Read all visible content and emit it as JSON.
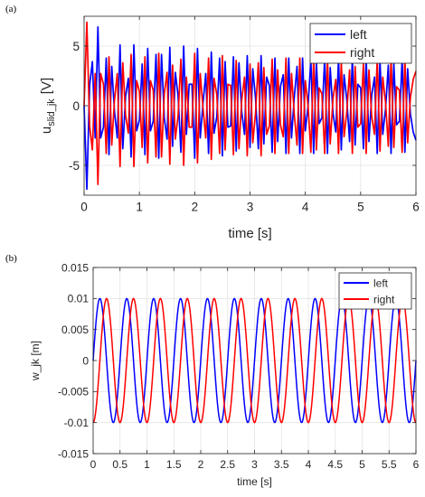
{
  "panels": [
    {
      "tag": "(a)"
    },
    {
      "tag": "(b)"
    }
  ],
  "chart_data": [
    {
      "type": "line",
      "title": "",
      "xlabel": "time [s]",
      "ylabel_main": "u",
      "ylabel_sub": "slid_jk",
      "ylabel_unit": "[V]",
      "xlim": [
        0,
        6
      ],
      "ylim": [
        -7.5,
        7.5
      ],
      "xticks": [
        0,
        1,
        2,
        3,
        4,
        5,
        6
      ],
      "xtick_labels": [
        "0",
        "1",
        "2",
        "3",
        "4",
        "5",
        "6"
      ],
      "yticks": [
        -5,
        0,
        5
      ],
      "ytick_labels": [
        "-5",
        "0",
        "5"
      ],
      "grid": true,
      "legend_position": "top-right",
      "series": [
        {
          "name": "left",
          "color": "#0000ff",
          "x": [
            0,
            0.05,
            0.1,
            0.15,
            0.2,
            0.25,
            0.3,
            0.35,
            0.4,
            0.45,
            0.5,
            0.55,
            0.6,
            0.65,
            0.7,
            0.75,
            0.8,
            0.85,
            0.9,
            0.95,
            1.0,
            1.05,
            1.1,
            1.15,
            1.2,
            1.25,
            1.3,
            1.35,
            1.4,
            1.45,
            1.5,
            1.55,
            1.6,
            1.65,
            1.7,
            1.75,
            1.8,
            1.85,
            1.9,
            1.95,
            2.0,
            2.05,
            2.1,
            2.15,
            2.2,
            2.25,
            2.3,
            2.35,
            2.4,
            2.45,
            2.5,
            2.55,
            2.6,
            2.65,
            2.7,
            2.75,
            2.8,
            2.85,
            2.9,
            2.95,
            3.0,
            3.05,
            3.1,
            3.15,
            3.2,
            3.25,
            3.3,
            3.35,
            3.4,
            3.45,
            3.5,
            3.55,
            3.6,
            3.65,
            3.7,
            3.75,
            3.8,
            3.85,
            3.9,
            3.95,
            4.0,
            4.05,
            4.1,
            4.15,
            4.2,
            4.25,
            4.3,
            4.35,
            4.4,
            4.45,
            4.5,
            4.55,
            4.6,
            4.65,
            4.7,
            4.75,
            4.8,
            4.85,
            4.9,
            4.95,
            5.0,
            5.05,
            5.1,
            5.15,
            5.2,
            5.25,
            5.3,
            5.35,
            5.4,
            5.45,
            5.5,
            5.55,
            5.6,
            5.65,
            5.7,
            5.75,
            5.8,
            5.85,
            5.9,
            5.95,
            6.0
          ],
          "values": [
            0.0,
            -7.0,
            1.7,
            3.7,
            -2.7,
            6.6,
            -2.7,
            -1.8,
            4.0,
            -4.1,
            3.3,
            -0.5,
            -2.7,
            5.1,
            -3.6,
            0.8,
            2.3,
            -4.3,
            5.1,
            -2.1,
            -1.2,
            3.5,
            -4.1,
            4.8,
            -2.1,
            -1.3,
            4.3,
            -4.4,
            4.3,
            -1.0,
            -2.8,
            4.9,
            -3.4,
            2.8,
            0.8,
            -3.9,
            5.0,
            -2.4,
            1.8,
            1.8,
            -4.4,
            4.8,
            -2.7,
            0.2,
            2.7,
            -4.0,
            4.5,
            -2.3,
            -0.9,
            4.0,
            -4.2,
            3.7,
            -1.8,
            -1.7,
            4.1,
            -3.8,
            3.6,
            -0.5,
            -2.4,
            4.2,
            -3.5,
            3.1,
            0.6,
            -3.6,
            4.2,
            -3.2,
            2.4,
            1.7,
            -3.9,
            4.0,
            -3.0,
            1.6,
            2.6,
            -4.0,
            4.0,
            -2.7,
            0.7,
            3.3,
            -4.0,
            4.0,
            -2.1,
            0.0,
            3.9,
            -4.0,
            3.7,
            -1.5,
            -1.0,
            4.0,
            -4.0,
            3.2,
            -0.6,
            -2.2,
            4.0,
            -3.7,
            2.6,
            0.5,
            -3.0,
            4.0,
            -3.3,
            1.8,
            1.5,
            -3.6,
            4.0,
            -3.0,
            0.9,
            2.4,
            -4.0,
            3.8,
            -2.4,
            -0.3,
            3.4,
            -4.0,
            3.5,
            -1.6,
            -1.3,
            3.9,
            -3.9,
            3.1,
            -0.7,
            -2.2,
            -2.9
          ]
        },
        {
          "name": "right",
          "color": "#ff0000",
          "x": [
            0,
            0.05,
            0.1,
            0.15,
            0.2,
            0.25,
            0.3,
            0.35,
            0.4,
            0.45,
            0.5,
            0.55,
            0.6,
            0.65,
            0.7,
            0.75,
            0.8,
            0.85,
            0.9,
            0.95,
            1.0,
            1.05,
            1.1,
            1.15,
            1.2,
            1.25,
            1.3,
            1.35,
            1.4,
            1.45,
            1.5,
            1.55,
            1.6,
            1.65,
            1.7,
            1.75,
            1.8,
            1.85,
            1.9,
            1.95,
            2.0,
            2.05,
            2.1,
            2.15,
            2.2,
            2.25,
            2.3,
            2.35,
            2.4,
            2.45,
            2.5,
            2.55,
            2.6,
            2.65,
            2.7,
            2.75,
            2.8,
            2.85,
            2.9,
            2.95,
            3.0,
            3.05,
            3.1,
            3.15,
            3.2,
            3.25,
            3.3,
            3.35,
            3.4,
            3.45,
            3.5,
            3.55,
            3.6,
            3.65,
            3.7,
            3.75,
            3.8,
            3.85,
            3.9,
            3.95,
            4.0,
            4.05,
            4.1,
            4.15,
            4.2,
            4.25,
            4.3,
            4.35,
            4.4,
            4.45,
            4.5,
            4.55,
            4.6,
            4.65,
            4.7,
            4.75,
            4.8,
            4.85,
            4.9,
            4.95,
            5.0,
            5.05,
            5.1,
            5.15,
            5.2,
            5.25,
            5.3,
            5.35,
            5.4,
            5.45,
            5.5,
            5.55,
            5.6,
            5.65,
            5.7,
            5.75,
            5.8,
            5.85,
            5.9,
            5.95,
            6.0
          ],
          "values": [
            0.0,
            7.0,
            -1.7,
            -3.7,
            2.7,
            -6.6,
            2.7,
            1.8,
            -4.0,
            4.1,
            -3.3,
            0.5,
            2.7,
            -5.1,
            3.6,
            -0.8,
            -2.3,
            4.3,
            -5.1,
            2.1,
            1.2,
            -3.5,
            4.1,
            -4.8,
            2.1,
            1.3,
            -4.3,
            4.4,
            -4.3,
            1.0,
            2.8,
            -4.9,
            3.4,
            -2.8,
            -0.8,
            3.9,
            -5.0,
            2.4,
            -1.8,
            -1.8,
            4.4,
            -4.8,
            2.7,
            -0.2,
            -2.7,
            4.0,
            -4.5,
            2.3,
            0.9,
            -4.0,
            4.2,
            -3.7,
            1.8,
            1.7,
            -4.1,
            3.8,
            -3.6,
            0.5,
            2.4,
            -4.2,
            3.5,
            -3.1,
            -0.6,
            3.6,
            -4.2,
            3.2,
            -2.4,
            -1.7,
            3.9,
            -4.0,
            3.0,
            -1.6,
            -2.6,
            4.0,
            -4.0,
            2.7,
            -0.7,
            -3.3,
            4.0,
            -4.0,
            2.1,
            0.0,
            -3.9,
            4.0,
            -3.7,
            1.5,
            1.0,
            -4.0,
            4.0,
            -3.2,
            0.6,
            2.2,
            -4.0,
            3.7,
            -2.6,
            -0.5,
            3.0,
            -4.0,
            3.3,
            -1.8,
            -1.5,
            3.6,
            -4.0,
            3.0,
            -0.9,
            -2.4,
            4.0,
            -3.8,
            2.4,
            0.3,
            -3.4,
            4.0,
            -3.5,
            1.6,
            1.3,
            -3.9,
            3.9,
            -3.1,
            0.7,
            2.2,
            2.9
          ]
        }
      ]
    },
    {
      "type": "line",
      "title": "",
      "xlabel": "time [s]",
      "ylabel": "w_jk [m]",
      "xlim": [
        0,
        6
      ],
      "ylim": [
        -0.015,
        0.015
      ],
      "xticks": [
        0,
        0.5,
        1,
        1.5,
        2,
        2.5,
        3,
        3.5,
        4,
        4.5,
        5,
        5.5,
        6
      ],
      "xtick_labels": [
        "0",
        "0.5",
        "1",
        "1.5",
        "2",
        "2.5",
        "3",
        "3.5",
        "4",
        "4.5",
        "5",
        "5.5",
        "6"
      ],
      "yticks": [
        -0.015,
        -0.01,
        -0.005,
        0,
        0.005,
        0.01,
        0.015
      ],
      "ytick_labels": [
        "-0.015",
        "-0.01",
        "-0.005",
        "0",
        "0.005",
        "0.01",
        "0.015"
      ],
      "grid": true,
      "legend_position": "top-right",
      "series": [
        {
          "name": "left",
          "color": "#0000ff",
          "function": "0.01*sin(2*pi*2.0*t)",
          "amplitude": 0.01,
          "frequency_hz": 2.0,
          "phase_rad": 0
        },
        {
          "name": "right",
          "color": "#ff0000",
          "function": "-0.01*cos(2*pi*2.0*t)",
          "amplitude": 0.01,
          "frequency_hz": 2.0,
          "phase_rad": -1.5708
        }
      ]
    }
  ]
}
